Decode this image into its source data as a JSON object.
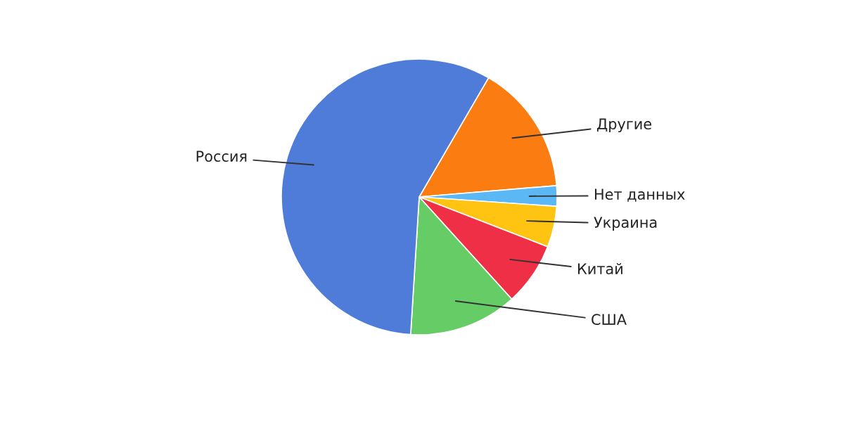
{
  "chart_data": {
    "type": "pie",
    "categories": [
      "Другие",
      "Нет данных",
      "Украина",
      "Китай",
      "США",
      "Россия"
    ],
    "values": [
      15.3,
      2.4,
      4.8,
      7.4,
      12.7,
      57.4
    ],
    "colors": [
      "#fb7c10",
      "#5bb8f5",
      "#ffc312",
      "#ee2f45",
      "#66cc66",
      "#4f7bd9"
    ]
  }
}
